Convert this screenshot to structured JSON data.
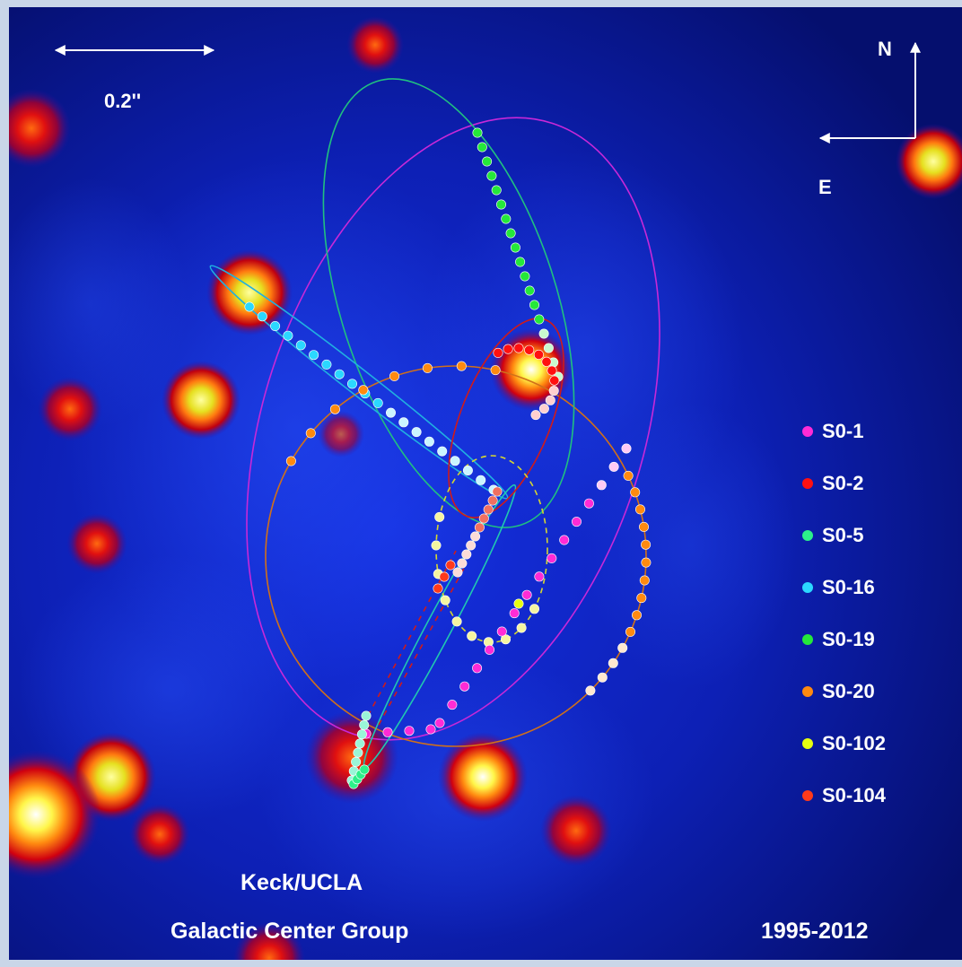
{
  "scale_bar": {
    "label": "0.2''"
  },
  "compass": {
    "north_label": "N",
    "east_label": "E"
  },
  "legend": [
    {
      "name": "S0-1",
      "color": "#ff2bd6"
    },
    {
      "name": "S0-2",
      "color": "#ff1010"
    },
    {
      "name": "S0-5",
      "color": "#2cf08a"
    },
    {
      "name": "S0-16",
      "color": "#2bd8ff"
    },
    {
      "name": "S0-19",
      "color": "#25e83a"
    },
    {
      "name": "S0-20",
      "color": "#ff8a10"
    },
    {
      "name": "S0-102",
      "color": "#e6ff10"
    },
    {
      "name": "S0-104",
      "color": "#ff3a1a"
    }
  ],
  "credit": {
    "line1": "Keck/UCLA",
    "line2": "Galactic Center Group"
  },
  "date_range": "1995-2012"
}
